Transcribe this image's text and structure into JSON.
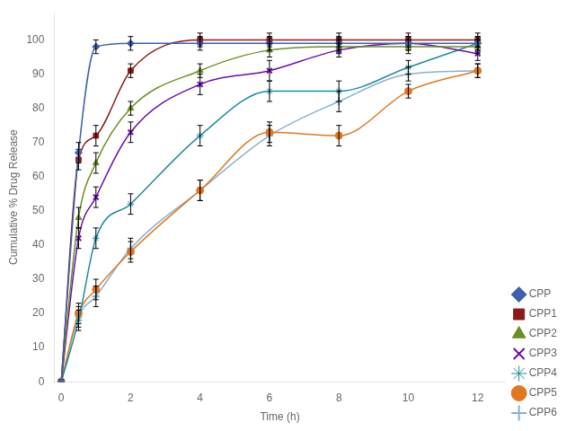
{
  "chart_data": {
    "type": "line",
    "xlabel": "Time (h)",
    "ylabel": "Cumulative % Drug Release",
    "xlim": [
      -0.2,
      12.8
    ],
    "ylim": [
      0,
      108
    ],
    "xticks": [
      0,
      2,
      4,
      6,
      8,
      10,
      12
    ],
    "yticks": [
      0,
      10,
      20,
      30,
      40,
      50,
      60,
      70,
      80,
      90,
      100
    ],
    "grid": false,
    "legend": "lower right",
    "line_style": "solid",
    "series": [
      {
        "name": "CPP",
        "color": "#3f5faf",
        "marker": "diamond",
        "x": [
          0,
          0.5,
          1,
          2,
          4,
          6,
          8,
          10,
          12
        ],
        "values": [
          0,
          67,
          98,
          99,
          99,
          99,
          99,
          99,
          99
        ],
        "yerr": [
          0,
          3,
          2,
          2,
          2,
          2,
          2,
          2,
          2
        ]
      },
      {
        "name": "CPP1",
        "color": "#8b1a1a",
        "marker": "square",
        "x": [
          0,
          0.5,
          1,
          2,
          4,
          6,
          8,
          10,
          12
        ],
        "values": [
          0,
          65,
          72,
          91,
          100,
          100,
          100,
          100,
          100
        ],
        "yerr": [
          0,
          3,
          3,
          2,
          2,
          2,
          2,
          2,
          2
        ]
      },
      {
        "name": "CPP2",
        "color": "#6b8e23",
        "marker": "triangle",
        "x": [
          0,
          0.5,
          1,
          2,
          4,
          6,
          8,
          10,
          12
        ],
        "values": [
          0,
          48,
          64,
          80,
          91,
          97,
          98,
          98,
          98
        ],
        "yerr": [
          0,
          3,
          3,
          2,
          2,
          2,
          2,
          2,
          2
        ]
      },
      {
        "name": "CPP3",
        "color": "#6a0dad",
        "marker": "x",
        "x": [
          0,
          0.5,
          1,
          2,
          4,
          6,
          8,
          10,
          12
        ],
        "values": [
          0,
          42,
          54,
          73,
          87,
          91,
          97,
          99,
          96
        ],
        "yerr": [
          0,
          3,
          3,
          3,
          3,
          3,
          2,
          2,
          2
        ]
      },
      {
        "name": "CPP4",
        "color": "#1e8b9e",
        "marker": "star",
        "x": [
          0,
          0.5,
          1,
          2,
          4,
          6,
          8,
          10,
          12
        ],
        "values": [
          0,
          18,
          42,
          52,
          72,
          85,
          85,
          92,
          99
        ],
        "yerr": [
          0,
          3,
          3,
          3,
          3,
          3,
          3,
          2,
          2
        ]
      },
      {
        "name": "CPP5",
        "color": "#e07820",
        "marker": "circle",
        "x": [
          0,
          0.5,
          1,
          2,
          4,
          6,
          8,
          10,
          12
        ],
        "values": [
          0,
          20,
          27,
          38,
          56,
          73,
          72,
          85,
          91
        ],
        "yerr": [
          0,
          3,
          3,
          3,
          3,
          3,
          3,
          2,
          2
        ]
      },
      {
        "name": "CPP6",
        "color": "#8ab0d0",
        "marker": "plus",
        "x": [
          0,
          0.5,
          1,
          2,
          4,
          6,
          8,
          10,
          12
        ],
        "values": [
          0,
          19,
          25,
          39,
          56,
          72,
          82,
          90,
          91
        ],
        "yerr": [
          0,
          3,
          3,
          3,
          3,
          3,
          3,
          2,
          2
        ]
      }
    ]
  }
}
